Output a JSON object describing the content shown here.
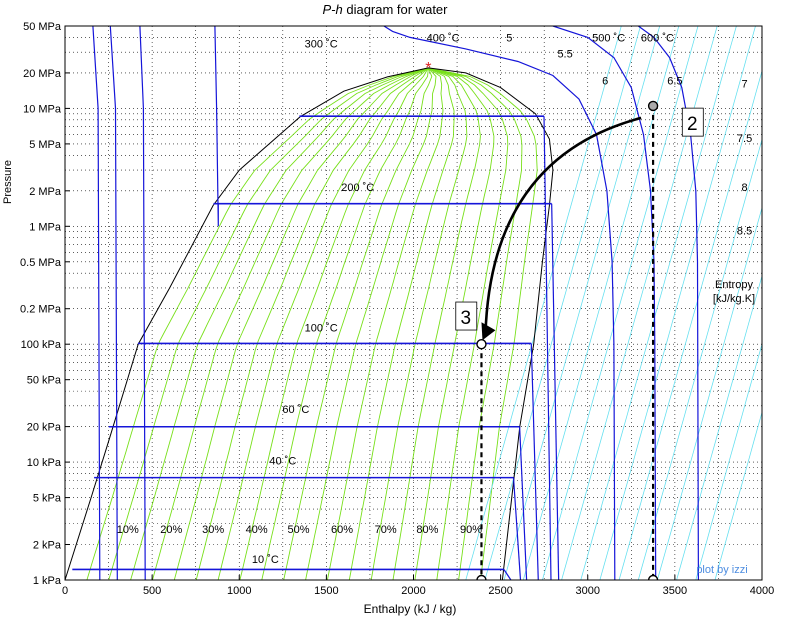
{
  "chart_data": {
    "type": "line",
    "title_italic": "P-h",
    "title_rest": " diagram for water",
    "xlabel": "Enthalpy (kJ / kg)",
    "ylabel": "Pressure",
    "xlim": [
      0,
      4000
    ],
    "ylim_pa": [
      1000,
      50000000
    ],
    "log_y": true,
    "grid": true,
    "x_ticks": [
      0,
      500,
      1000,
      1500,
      2000,
      2500,
      3000,
      3500,
      4000
    ],
    "y_ticks": [
      {
        "value": 1000,
        "label": "1 kPa"
      },
      {
        "value": 2000,
        "label": "2 kPa"
      },
      {
        "value": 5000,
        "label": "5 kPa"
      },
      {
        "value": 10000,
        "label": "10 kPa"
      },
      {
        "value": 20000,
        "label": "20 kPa"
      },
      {
        "value": 50000,
        "label": "50 kPa"
      },
      {
        "value": 100000,
        "label": "100 kPa"
      },
      {
        "value": 200000,
        "label": "0.2 MPa"
      },
      {
        "value": 500000,
        "label": "0.5 MPa"
      },
      {
        "value": 1000000,
        "label": "1 MPa"
      },
      {
        "value": 2000000,
        "label": "2 MPa"
      },
      {
        "value": 5000000,
        "label": "5 MPa"
      },
      {
        "value": 10000000,
        "label": "10 MPa"
      },
      {
        "value": 20000000,
        "label": "20 MPa"
      },
      {
        "value": 50000000,
        "label": "50 MPa"
      }
    ],
    "saturation_dome": [
      [
        0,
        1000
      ],
      [
        150,
        5000
      ],
      [
        250,
        15000
      ],
      [
        420,
        100000
      ],
      [
        600,
        300000
      ],
      [
        850,
        1500000
      ],
      [
        1000,
        3000000
      ],
      [
        1350,
        8500000
      ],
      [
        1600,
        14000000
      ],
      [
        1850,
        18500000
      ],
      [
        2085,
        22064000
      ],
      [
        2300,
        20000000
      ],
      [
        2500,
        15000000
      ],
      [
        2700,
        9000000
      ],
      [
        2780,
        5500000
      ],
      [
        2800,
        3000000
      ],
      [
        2780,
        1500000
      ],
      [
        2740,
        500000
      ],
      [
        2690,
        100000
      ],
      [
        2610,
        20000
      ],
      [
        2570,
        6000
      ],
      [
        2510,
        1000
      ]
    ],
    "critical_point": {
      "h": 2085,
      "p": 22064000
    },
    "isotherms": [
      {
        "label": "10 ˚C",
        "liq_h": 42,
        "vap_h": 2519,
        "p": 1228,
        "label_at": [
          1150,
          1400
        ]
      },
      {
        "label": "40 ˚C",
        "liq_h": 167,
        "vap_h": 2574,
        "p": 7385,
        "label_at": [
          1250,
          9500
        ]
      },
      {
        "label": "60 ˚C",
        "liq_h": 251,
        "vap_h": 2609,
        "p": 19946,
        "label_at": [
          1325,
          26000
        ]
      },
      {
        "label": "100 ˚C",
        "liq_h": 419,
        "vap_h": 2676,
        "p": 101418,
        "label_at": [
          1470,
          128000
        ]
      },
      {
        "label": "200 ˚C",
        "liq_h": 852,
        "vap_h": 2793,
        "p": 1554900,
        "label_at": [
          1680,
          2000000
        ]
      },
      {
        "label": "300 ˚C",
        "liq_h": 1345,
        "vap_h": 2749,
        "p": 8587900,
        "label_at": [
          1470,
          33000000
        ]
      }
    ],
    "superheat_isotherms": [
      {
        "label": "400 ˚C",
        "points": [
          [
            1830,
            50000000
          ],
          [
            1880,
            45000000
          ],
          [
            1980,
            40000000
          ],
          [
            2300,
            32000000
          ],
          [
            2600,
            25000000
          ],
          [
            2800,
            19000000
          ],
          [
            2950,
            12000000
          ],
          [
            3050,
            6000000
          ],
          [
            3110,
            2000000
          ],
          [
            3140,
            500000
          ],
          [
            3150,
            100000
          ],
          [
            3155,
            1000
          ]
        ],
        "label_at": [
          2170,
          37000000
        ]
      },
      {
        "label": "500 ˚C",
        "points": [
          [
            2800,
            50000000
          ],
          [
            3000,
            40000000
          ],
          [
            3150,
            27000000
          ],
          [
            3250,
            15000000
          ],
          [
            3320,
            6000000
          ],
          [
            3360,
            2000000
          ],
          [
            3380,
            500000
          ],
          [
            3385,
            100000
          ],
          [
            3390,
            1000
          ]
        ],
        "label_at": [
          3120,
          37000000
        ]
      },
      {
        "label": "600 ˚C",
        "points": [
          [
            3290,
            50000000
          ],
          [
            3380,
            40000000
          ],
          [
            3470,
            27000000
          ],
          [
            3540,
            15000000
          ],
          [
            3590,
            6000000
          ],
          [
            3620,
            2000000
          ],
          [
            3630,
            500000
          ],
          [
            3635,
            1000
          ]
        ],
        "label_at": [
          3400,
          37000000
        ]
      }
    ],
    "left_isotherms": [
      [
        [
          160,
          50000000
        ],
        [
          190,
          10000000
        ],
        [
          200,
          1000
        ]
      ],
      [
        [
          260,
          50000000
        ],
        [
          290,
          10000000
        ],
        [
          300,
          1000
        ]
      ],
      [
        [
          430,
          50000000
        ],
        [
          450,
          10000000
        ],
        [
          460,
          1000
        ]
      ],
      [
        [
          860,
          50000000
        ],
        [
          870,
          10000000
        ],
        [
          880,
          1000000
        ],
        [
          880,
          1560000
        ]
      ]
    ],
    "quality_lines": {
      "labels": [
        "10%",
        "20%",
        "30%",
        "40%",
        "50%",
        "60%",
        "70%",
        "80%",
        "90%"
      ],
      "label_y": 2500,
      "label_h": [
        360,
        610,
        850,
        1100,
        1340,
        1590,
        1840,
        2080,
        2330
      ]
    },
    "entropy_lines": {
      "labels": [
        "5",
        "5.5",
        "6",
        "6.5",
        "7",
        "7.5",
        "8",
        "8.5"
      ],
      "label_at": [
        [
          2550,
          37000000
        ],
        [
          2870,
          27000000
        ],
        [
          3100,
          16000000
        ],
        [
          3500,
          16000000
        ],
        [
          3900,
          15000000
        ],
        [
          3900,
          5200000
        ],
        [
          3900,
          2000000
        ],
        [
          3900,
          850000
        ]
      ],
      "legend_label": "Entropy",
      "legend_units": "[kJ/kg.K]"
    },
    "states": [
      {
        "id": "1",
        "label": "",
        "h": 3375,
        "p": 10500000
      },
      {
        "id": "2",
        "label": "2",
        "h": 3375,
        "p": 1000
      },
      {
        "id": "3",
        "label": "3",
        "h": 2390,
        "p": 100000
      },
      {
        "id": "4",
        "label": "",
        "h": 2390,
        "p": 1000
      }
    ],
    "state_box_2": {
      "label": "2",
      "h": 3600,
      "p": 7500000
    },
    "state_box_3": {
      "label": "3",
      "h": 2300,
      "p": 170000
    },
    "credit": "plot by izzi"
  },
  "colors": {
    "isotherm": "#1515d9",
    "dome": "#000000",
    "quality": "#78e01a",
    "entropy": "#3333dd",
    "entropy_cyan": "#66e0f0",
    "critical": "#dd2222",
    "credit": "#4d8de0"
  }
}
